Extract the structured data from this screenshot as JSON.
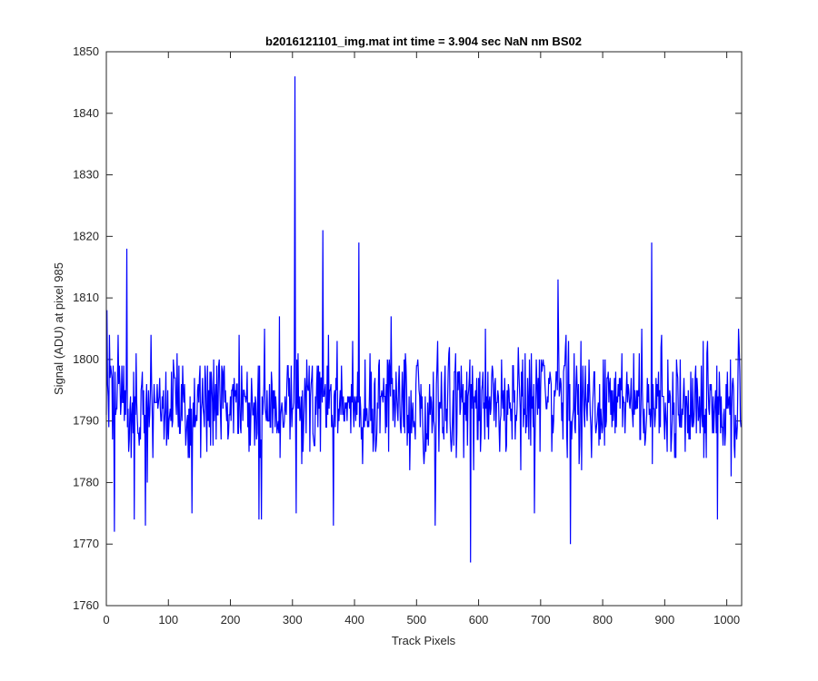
{
  "chart_data": {
    "type": "line",
    "title": "b2016121101_img.mat int time = 3.904 sec  NaN nm BS02",
    "xlabel": "Track Pixels",
    "ylabel": "Signal (ADU) at pixel 985",
    "xlim": [
      0,
      1024
    ],
    "ylim": [
      1760,
      1850
    ],
    "x_ticks": [
      0,
      100,
      200,
      300,
      400,
      500,
      600,
      700,
      800,
      900,
      1000
    ],
    "y_ticks": [
      1760,
      1770,
      1780,
      1790,
      1800,
      1810,
      1820,
      1830,
      1840,
      1850
    ],
    "grid": false,
    "line_color": "#0000ff",
    "series_note": "1024 samples; approximate values read from the plot — noisy trace around 1793 ADU with labeled peaks/troughs",
    "series": [
      {
        "x_start": 0,
        "x_step": 1,
        "notable_points": [
          {
            "x": 1,
            "y": 1808
          },
          {
            "x": 13,
            "y": 1772
          },
          {
            "x": 33,
            "y": 1818
          },
          {
            "x": 45,
            "y": 1774
          },
          {
            "x": 63,
            "y": 1773
          },
          {
            "x": 138,
            "y": 1775
          },
          {
            "x": 246,
            "y": 1774
          },
          {
            "x": 250,
            "y": 1774
          },
          {
            "x": 304,
            "y": 1846
          },
          {
            "x": 306,
            "y": 1775
          },
          {
            "x": 349,
            "y": 1821
          },
          {
            "x": 366,
            "y": 1773
          },
          {
            "x": 407,
            "y": 1819
          },
          {
            "x": 530,
            "y": 1773
          },
          {
            "x": 587,
            "y": 1767
          },
          {
            "x": 690,
            "y": 1775
          },
          {
            "x": 728,
            "y": 1813
          },
          {
            "x": 748,
            "y": 1770
          },
          {
            "x": 879,
            "y": 1819
          },
          {
            "x": 985,
            "y": 1774
          },
          {
            "x": 1019,
            "y": 1805
          }
        ],
        "baseline_mean": 1793,
        "baseline_spread": 6
      }
    ]
  }
}
